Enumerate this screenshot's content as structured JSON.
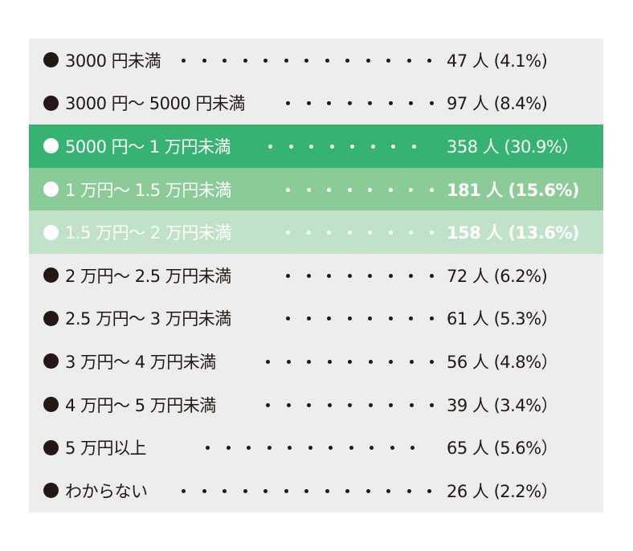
{
  "chart_data": {
    "type": "table",
    "rows": [
      {
        "label": "3000 円未満",
        "count": 47,
        "value_text": "47 人 (4.1%)",
        "percent": 4.1,
        "dots_from": 0
      },
      {
        "label": "3000 円〜 5000 円未満",
        "count": 97,
        "value_text": "97 人 (8.4%)",
        "percent": 8.4,
        "dots_from": 0
      },
      {
        "label": "5000 円〜 1 万円未満",
        "count": 358,
        "value_text": "358 人 (30.9%）",
        "percent": 30.9,
        "highlight": "#36b373"
      },
      {
        "label": "1 万円〜 1.5 万円未満",
        "count": 181,
        "value_text": "181 人 (15.6%)",
        "percent": 15.6,
        "highlight": "#8bcb98",
        "bold": true
      },
      {
        "label": "1.5 万円〜 2 万円未満",
        "count": 158,
        "value_text": "158 人 (13.6%)",
        "percent": 13.6,
        "highlight": "#c0e2c8",
        "bold": true
      },
      {
        "label": "2 万円〜 2.5 万円未満",
        "count": 72,
        "value_text": "72 人 (6.2%)",
        "percent": 6.2
      },
      {
        "label": "2.5 万円〜 3 万円未満",
        "count": 61,
        "value_text": "61 人 (5.3%）",
        "percent": 5.3
      },
      {
        "label": "3 万円〜 4 万円未満",
        "count": 56,
        "value_text": "56 人 (4.8%）",
        "percent": 4.8
      },
      {
        "label": "4 万円〜 5 万円未満",
        "count": 39,
        "value_text": "39 人 (3.4%）",
        "percent": 3.4
      },
      {
        "label": "5 万円以上",
        "count": 65,
        "value_text": "65 人 (5.6%）",
        "percent": 5.6
      },
      {
        "label": "わからない",
        "count": 26,
        "value_text": "26 人 (2.2%）",
        "percent": 2.2
      }
    ],
    "colors": {
      "background": "#ededed",
      "text": "#231815",
      "highlight_1": "#36b373",
      "highlight_2": "#8bcb98",
      "highlight_3": "#c0e2c8"
    }
  }
}
